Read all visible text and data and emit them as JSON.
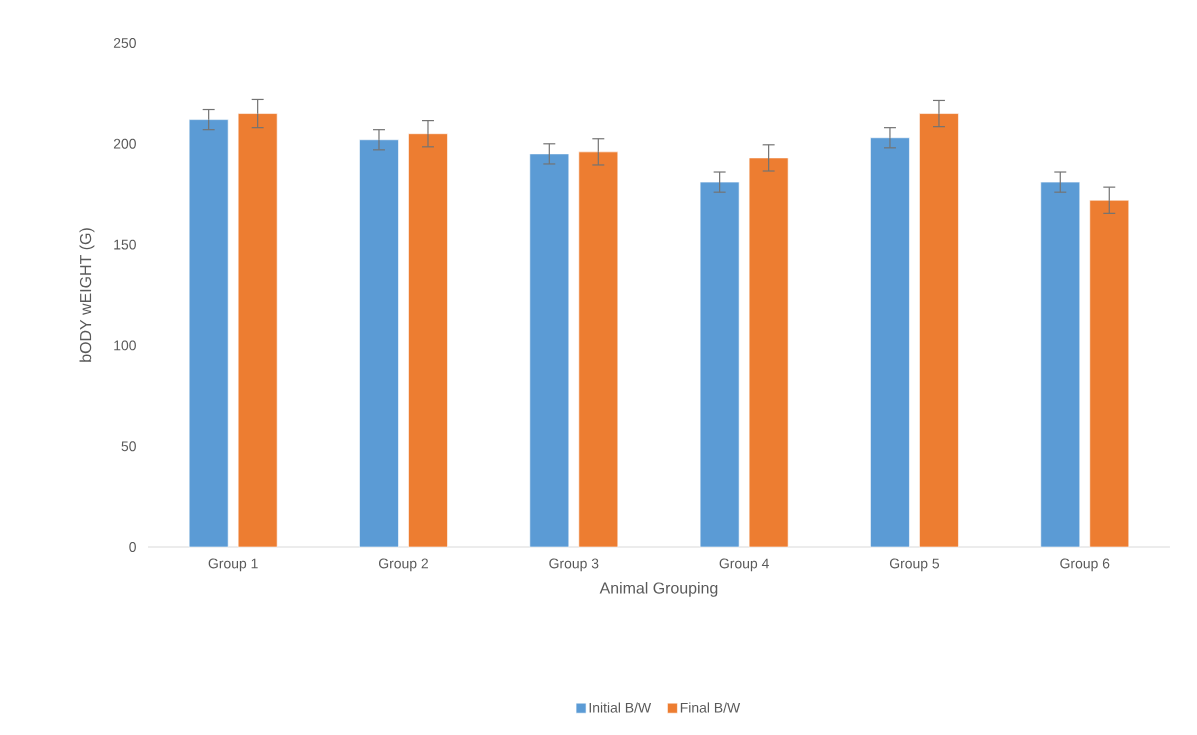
{
  "chart_data": {
    "type": "bar",
    "xlabel": "Animal Grouping",
    "ylabel": "bODY wEIGHT (G)",
    "categories": [
      "Group 1",
      "Group 2",
      "Group 3",
      "Group 4",
      "Group 5",
      "Group 6"
    ],
    "series": [
      {
        "name": "Initial B/W",
        "color": "#5b9bd5",
        "values": [
          212,
          202,
          195,
          181,
          203,
          181
        ],
        "errors": [
          5,
          5,
          5,
          5,
          5,
          5
        ]
      },
      {
        "name": "Final B/W",
        "color": "#ed7d31",
        "values": [
          215,
          205,
          196,
          193,
          215,
          172
        ],
        "errors": [
          7,
          6.5,
          6.5,
          6.5,
          6.5,
          6.5
        ]
      }
    ],
    "ylim": [
      0,
      250
    ],
    "yticks": [
      0,
      50,
      100,
      150,
      200,
      250
    ],
    "legend": "bottom"
  }
}
